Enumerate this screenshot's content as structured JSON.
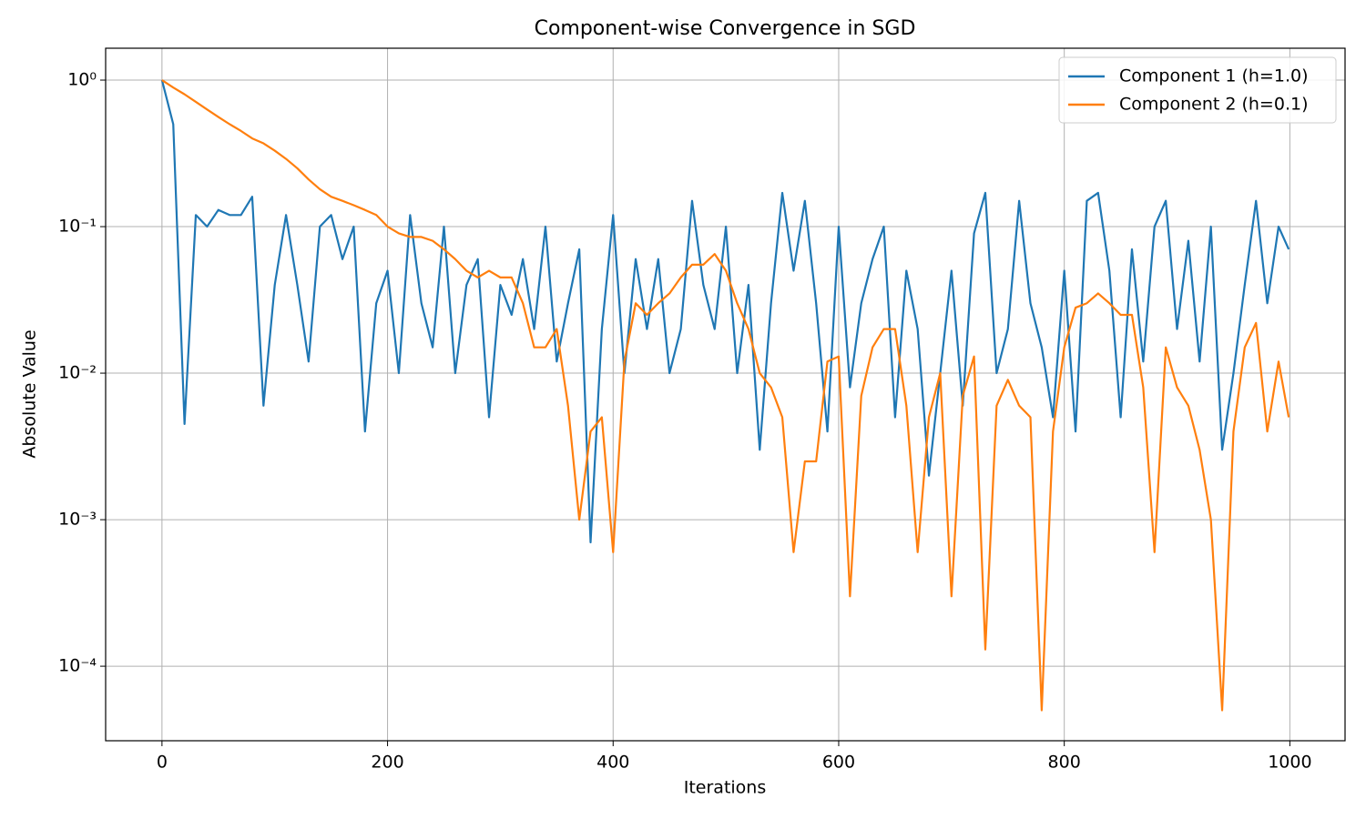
{
  "chart_data": {
    "type": "line",
    "title": "Component-wise Convergence in SGD",
    "xlabel": "Iterations",
    "ylabel": "Absolute Value",
    "x": [
      0,
      10,
      20,
      30,
      40,
      50,
      60,
      70,
      80,
      90,
      100,
      110,
      120,
      130,
      140,
      150,
      160,
      170,
      180,
      190,
      200,
      210,
      220,
      230,
      240,
      250,
      260,
      270,
      280,
      290,
      300,
      310,
      320,
      330,
      340,
      350,
      360,
      370,
      380,
      390,
      400,
      410,
      420,
      430,
      440,
      450,
      460,
      470,
      480,
      490,
      500,
      510,
      520,
      530,
      540,
      550,
      560,
      570,
      580,
      590,
      600,
      610,
      620,
      630,
      640,
      650,
      660,
      670,
      680,
      690,
      700,
      710,
      720,
      730,
      740,
      750,
      760,
      770,
      780,
      790,
      800,
      810,
      820,
      830,
      840,
      850,
      860,
      870,
      880,
      890,
      900,
      910,
      920,
      930,
      940,
      950,
      960,
      970,
      980,
      990,
      999
    ],
    "series": [
      {
        "name": "Component 1 (h=1.0)",
        "color": "#1f77b4",
        "values": [
          1,
          0.5,
          0.0045,
          0.12,
          0.1,
          0.13,
          0.12,
          0.12,
          0.16,
          0.006,
          0.04,
          0.12,
          0.04,
          0.012,
          0.1,
          0.12,
          0.06,
          0.1,
          0.004,
          0.03,
          0.05,
          0.01,
          0.12,
          0.03,
          0.015,
          0.1,
          0.01,
          0.04,
          0.06,
          0.005,
          0.04,
          0.025,
          0.06,
          0.02,
          0.1,
          0.012,
          0.03,
          0.07,
          0.0007,
          0.02,
          0.12,
          0.01,
          0.06,
          0.02,
          0.06,
          0.01,
          0.02,
          0.15,
          0.04,
          0.02,
          0.1,
          0.01,
          0.04,
          0.003,
          0.03,
          0.17,
          0.05,
          0.15,
          0.03,
          0.004,
          0.1,
          0.008,
          0.03,
          0.06,
          0.1,
          0.005,
          0.05,
          0.02,
          0.002,
          0.01,
          0.05,
          0.006,
          0.09,
          0.17,
          0.01,
          0.02,
          0.15,
          0.03,
          0.015,
          0.005,
          0.05,
          0.004,
          0.15,
          0.17,
          0.05,
          0.005,
          0.07,
          0.012,
          0.1,
          0.15,
          0.02,
          0.08,
          0.012,
          0.1,
          0.003,
          0.01,
          0.04,
          0.15,
          0.03,
          0.1,
          0.07
        ]
      },
      {
        "name": "Component 2 (h=0.1)",
        "color": "#ff7f0e",
        "values": [
          1,
          0.89,
          0.8,
          0.71,
          0.63,
          0.56,
          0.5,
          0.45,
          0.4,
          0.37,
          0.33,
          0.29,
          0.25,
          0.21,
          0.18,
          0.16,
          0.15,
          0.14,
          0.13,
          0.12,
          0.1,
          0.09,
          0.085,
          0.085,
          0.08,
          0.07,
          0.06,
          0.05,
          0.045,
          0.05,
          0.045,
          0.045,
          0.03,
          0.015,
          0.015,
          0.02,
          0.006,
          0.001,
          0.004,
          0.005,
          0.0006,
          0.012,
          0.03,
          0.025,
          0.03,
          0.035,
          0.045,
          0.055,
          0.055,
          0.065,
          0.05,
          0.03,
          0.02,
          0.01,
          0.008,
          0.005,
          0.0006,
          0.0025,
          0.0025,
          0.012,
          0.013,
          0.0003,
          0.007,
          0.015,
          0.02,
          0.02,
          0.006,
          0.0006,
          0.005,
          0.01,
          0.0003,
          0.007,
          0.013,
          0.00013,
          0.006,
          0.009,
          0.006,
          0.005,
          5e-05,
          0.004,
          0.015,
          0.028,
          0.03,
          0.035,
          0.03,
          0.025,
          0.025,
          0.008,
          0.0006,
          0.015,
          0.008,
          0.006,
          0.003,
          0.001,
          5e-05,
          0.004,
          0.015,
          0.022,
          0.004,
          0.012,
          0.005
        ]
      }
    ],
    "xlim": [
      -49.95,
      1048.95
    ],
    "xticks": [
      0,
      200,
      400,
      600,
      800,
      1000
    ],
    "ylim": [
      3.1e-05,
      1.65
    ],
    "yscale": "log",
    "yticks": [
      {
        "value": 1,
        "label": "10⁰"
      },
      {
        "value": 0.1,
        "label": "10⁻¹"
      },
      {
        "value": 0.01,
        "label": "10⁻²"
      },
      {
        "value": 0.001,
        "label": "10⁻³"
      },
      {
        "value": 0.0001,
        "label": "10⁻⁴"
      }
    ],
    "grid": true,
    "legend": "upper right"
  }
}
